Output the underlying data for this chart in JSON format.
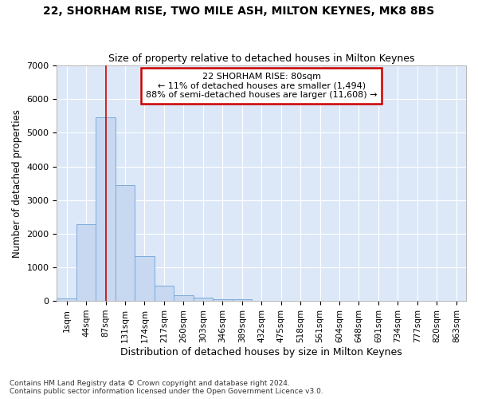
{
  "title_line1": "22, SHORHAM RISE, TWO MILE ASH, MILTON KEYNES, MK8 8BS",
  "title_line2": "Size of property relative to detached houses in Milton Keynes",
  "xlabel": "Distribution of detached houses by size in Milton Keynes",
  "ylabel": "Number of detached properties",
  "footnote": "Contains HM Land Registry data © Crown copyright and database right 2024.\nContains public sector information licensed under the Open Government Licence v3.0.",
  "bar_labels": [
    "1sqm",
    "44sqm",
    "87sqm",
    "131sqm",
    "174sqm",
    "217sqm",
    "260sqm",
    "303sqm",
    "346sqm",
    "389sqm",
    "432sqm",
    "475sqm",
    "518sqm",
    "561sqm",
    "604sqm",
    "648sqm",
    "691sqm",
    "734sqm",
    "777sqm",
    "820sqm",
    "863sqm"
  ],
  "bar_values": [
    75,
    2280,
    5470,
    3450,
    1330,
    460,
    160,
    100,
    60,
    50,
    0,
    0,
    0,
    0,
    0,
    0,
    0,
    0,
    0,
    0,
    0
  ],
  "bar_color": "#c8d8f0",
  "bar_edge_color": "#7aaadc",
  "bg_color": "#ffffff",
  "plot_bg_color": "#dce8f8",
  "grid_color": "#ffffff",
  "annotation_box_text": "22 SHORHAM RISE: 80sqm\n← 11% of detached houses are smaller (1,494)\n88% of semi-detached houses are larger (11,608) →",
  "annotation_box_color": "#ffffff",
  "annotation_box_edge_color": "#cc0000",
  "red_line_x": 2.0,
  "ylim": [
    0,
    7000
  ],
  "yticks": [
    0,
    1000,
    2000,
    3000,
    4000,
    5000,
    6000,
    7000
  ]
}
